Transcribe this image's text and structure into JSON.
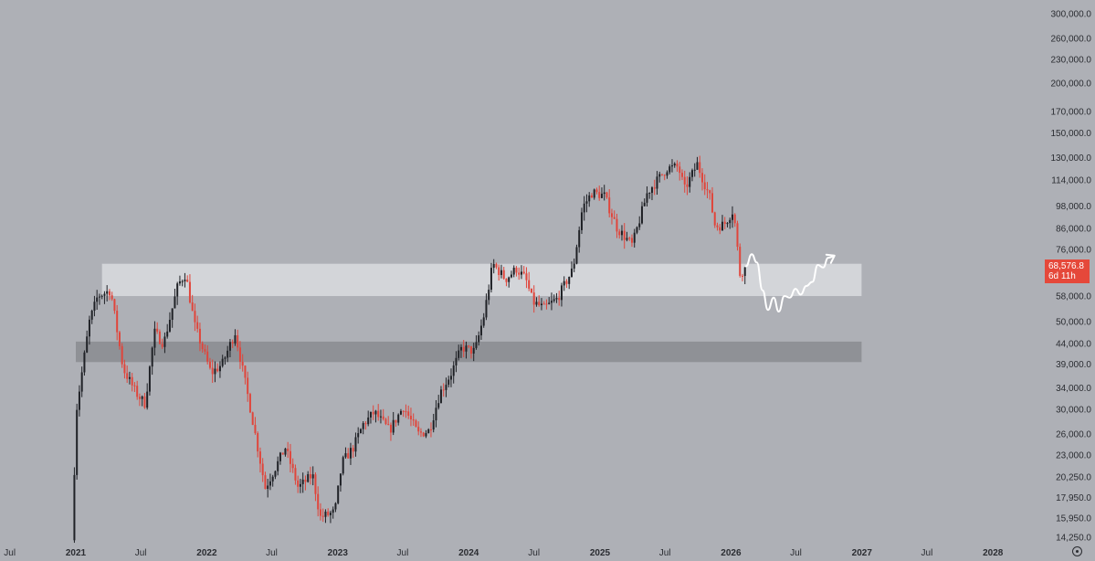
{
  "chart_data": {
    "type": "candlestick",
    "scale": "log",
    "y_ticks": [
      "300,000.0",
      "260,000.0",
      "230,000.0",
      "200,000.0",
      "170,000.0",
      "150,000.0",
      "130,000.0",
      "114,000.0",
      "98,000.0",
      "86,000.0",
      "76,000.0",
      "58,000.0",
      "50,000.0",
      "44,000.0",
      "39,000.0",
      "34,000.0",
      "30,000.0",
      "26,000.0",
      "23,000.0",
      "20,250.0",
      "17,950.0",
      "15,950.0",
      "14,250.0"
    ],
    "y_tick_values": [
      300000,
      260000,
      230000,
      200000,
      170000,
      150000,
      130000,
      114000,
      98000,
      86000,
      76000,
      58000,
      50000,
      44000,
      39000,
      34000,
      30000,
      26000,
      23000,
      20250,
      17950,
      15950,
      14250
    ],
    "x_ticks": [
      {
        "label": "Jul",
        "date": "2020-07-01",
        "year": false
      },
      {
        "label": "2021",
        "date": "2021-01-01",
        "year": true
      },
      {
        "label": "Jul",
        "date": "2021-07-01",
        "year": false
      },
      {
        "label": "2022",
        "date": "2022-01-01",
        "year": true
      },
      {
        "label": "Jul",
        "date": "2022-07-01",
        "year": false
      },
      {
        "label": "2023",
        "date": "2023-01-01",
        "year": true
      },
      {
        "label": "Jul",
        "date": "2023-07-01",
        "year": false
      },
      {
        "label": "2024",
        "date": "2024-01-01",
        "year": true
      },
      {
        "label": "Jul",
        "date": "2024-07-01",
        "year": false
      },
      {
        "label": "2025",
        "date": "2025-01-01",
        "year": true
      },
      {
        "label": "Jul",
        "date": "2025-07-01",
        "year": false
      },
      {
        "label": "2026",
        "date": "2026-01-01",
        "year": true
      },
      {
        "label": "Jul",
        "date": "2026-07-01",
        "year": false
      },
      {
        "label": "2027",
        "date": "2027-01-01",
        "year": true
      },
      {
        "label": "Jul",
        "date": "2027-07-01",
        "year": false
      },
      {
        "label": "2028",
        "date": "2028-01-01",
        "year": true
      }
    ],
    "price_path": [
      [
        "2020-12-28",
        14000
      ],
      [
        "2021-01-10",
        30000
      ],
      [
        "2021-02-15",
        50000
      ],
      [
        "2021-03-10",
        58000
      ],
      [
        "2021-04-15",
        60000
      ],
      [
        "2021-05-20",
        38000
      ],
      [
        "2021-06-25",
        33000
      ],
      [
        "2021-07-20",
        31000
      ],
      [
        "2021-08-15",
        47000
      ],
      [
        "2021-09-10",
        44000
      ],
      [
        "2021-10-20",
        62000
      ],
      [
        "2021-11-10",
        66000
      ],
      [
        "2021-12-05",
        49000
      ],
      [
        "2022-01-20",
        37000
      ],
      [
        "2022-02-20",
        39000
      ],
      [
        "2022-03-28",
        47000
      ],
      [
        "2022-05-10",
        30000
      ],
      [
        "2022-06-20",
        19000
      ],
      [
        "2022-08-15",
        24000
      ],
      [
        "2022-09-20",
        19000
      ],
      [
        "2022-10-30",
        20500
      ],
      [
        "2022-11-20",
        16000
      ],
      [
        "2022-12-31",
        16500
      ],
      [
        "2023-01-20",
        22000
      ],
      [
        "2023-02-20",
        24000
      ],
      [
        "2023-03-20",
        27500
      ],
      [
        "2023-04-20",
        29500
      ],
      [
        "2023-06-01",
        26500
      ],
      [
        "2023-07-10",
        30500
      ],
      [
        "2023-08-20",
        26000
      ],
      [
        "2023-09-20",
        26500
      ],
      [
        "2023-10-20",
        33000
      ],
      [
        "2023-11-20",
        37000
      ],
      [
        "2023-12-20",
        43000
      ],
      [
        "2024-01-25",
        42000
      ],
      [
        "2024-02-20",
        52000
      ],
      [
        "2024-03-15",
        70000
      ],
      [
        "2024-04-20",
        64000
      ],
      [
        "2024-05-20",
        68000
      ],
      [
        "2024-06-15",
        64000
      ],
      [
        "2024-07-05",
        56000
      ],
      [
        "2024-08-05",
        54000
      ],
      [
        "2024-09-10",
        57000
      ],
      [
        "2024-10-25",
        68000
      ],
      [
        "2024-11-20",
        97000
      ],
      [
        "2024-12-17",
        106000
      ],
      [
        "2025-01-20",
        104000
      ],
      [
        "2025-02-25",
        86000
      ],
      [
        "2025-04-08",
        78000
      ],
      [
        "2025-05-20",
        106000
      ],
      [
        "2025-07-14",
        122000
      ],
      [
        "2025-08-14",
        123000
      ],
      [
        "2025-09-01",
        108000
      ],
      [
        "2025-10-06",
        125000
      ],
      [
        "2025-11-10",
        103000
      ],
      [
        "2025-11-25",
        87000
      ],
      [
        "2025-12-20",
        88000
      ],
      [
        "2026-01-15",
        96000
      ],
      [
        "2026-02-05",
        62000
      ],
      [
        "2026-02-10",
        68576
      ]
    ],
    "zones": [
      {
        "from": 58000,
        "to": 70000,
        "start": "2021-03-15",
        "end": "2026-12-31",
        "color": "#d3d5d9"
      },
      {
        "from": 39500,
        "to": 44500,
        "start": "2021-01-01",
        "end": "2026-12-31",
        "color": "#8f9196"
      }
    ],
    "projection": [
      [
        "2026-02-12",
        69000
      ],
      [
        "2026-02-28",
        74000
      ],
      [
        "2026-03-14",
        70500
      ],
      [
        "2026-03-30",
        60000
      ],
      [
        "2026-04-14",
        53500
      ],
      [
        "2026-04-30",
        57500
      ],
      [
        "2026-05-14",
        53000
      ],
      [
        "2026-05-30",
        58000
      ],
      [
        "2026-06-14",
        57500
      ],
      [
        "2026-06-30",
        60500
      ],
      [
        "2026-07-14",
        58500
      ],
      [
        "2026-07-30",
        61500
      ],
      [
        "2026-08-16",
        63000
      ],
      [
        "2026-08-31",
        69500
      ],
      [
        "2026-09-15",
        68500
      ],
      [
        "2026-09-29",
        72500
      ],
      [
        "2026-10-14",
        73000
      ]
    ],
    "last_price_label": "68,576.8",
    "countdown_label": "6d 11h",
    "colors": {
      "up": "#1f2126",
      "down": "#e0453b",
      "background": "#aeb0b6",
      "projection": "#ffffff"
    }
  },
  "icons": {
    "settings": "gear-icon"
  }
}
